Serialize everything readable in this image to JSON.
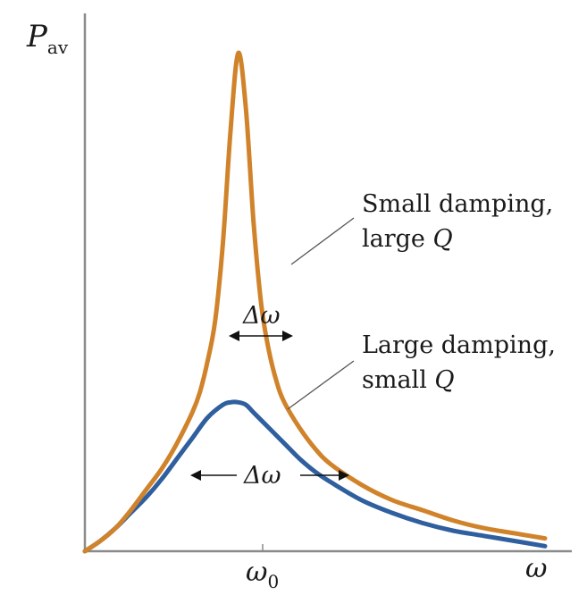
{
  "chart_data": {
    "type": "line",
    "ylabel": {
      "main": "P",
      "sub": "av"
    },
    "xlabel": "ω",
    "x_ticks": [
      {
        "main": "ω",
        "sub": "0",
        "value": 1.0
      }
    ],
    "xlim": [
      0,
      3.0
    ],
    "ylim": [
      0,
      1.0
    ],
    "grid": false,
    "series": [
      {
        "id": "small-damping",
        "name": "Small damping, large Q",
        "color": "#d0832a",
        "x": [
          0.0,
          0.1,
          0.2,
          0.3,
          0.4,
          0.5,
          0.6,
          0.7,
          0.75,
          0.8,
          0.85,
          0.9,
          0.95,
          1.0,
          1.05,
          1.1,
          1.15,
          1.2,
          1.25,
          1.3,
          1.4,
          1.5,
          1.6,
          1.8,
          2.0,
          2.2,
          2.4,
          2.6,
          2.8,
          3.0
        ],
        "y": [
          0.0,
          0.02,
          0.045,
          0.08,
          0.12,
          0.16,
          0.21,
          0.27,
          0.31,
          0.37,
          0.45,
          0.6,
          0.82,
          0.97,
          0.86,
          0.64,
          0.48,
          0.39,
          0.33,
          0.29,
          0.24,
          0.2,
          0.17,
          0.13,
          0.1,
          0.08,
          0.06,
          0.045,
          0.035,
          0.025
        ]
      },
      {
        "id": "large-damping",
        "name": "Large damping, small Q",
        "color": "#2f5f9e",
        "x": [
          0.0,
          0.1,
          0.2,
          0.3,
          0.4,
          0.5,
          0.6,
          0.7,
          0.8,
          0.9,
          0.95,
          1.0,
          1.05,
          1.1,
          1.2,
          1.3,
          1.4,
          1.5,
          1.6,
          1.8,
          2.0,
          2.2,
          2.4,
          2.6,
          2.8,
          3.0
        ],
        "y": [
          0.0,
          0.02,
          0.045,
          0.075,
          0.105,
          0.14,
          0.18,
          0.22,
          0.26,
          0.285,
          0.29,
          0.29,
          0.285,
          0.27,
          0.24,
          0.21,
          0.18,
          0.155,
          0.135,
          0.1,
          0.075,
          0.055,
          0.04,
          0.03,
          0.02,
          0.01
        ]
      }
    ],
    "annotations": [
      {
        "id": "label-small",
        "lines": [
          "Small damping,",
          "large"
        ],
        "q": "Q"
      },
      {
        "id": "label-large",
        "lines": [
          "Large damping,",
          "small"
        ],
        "q": "Q"
      },
      {
        "id": "delta-narrow",
        "text": "Δω"
      },
      {
        "id": "delta-wide",
        "text": "Δω"
      }
    ]
  }
}
